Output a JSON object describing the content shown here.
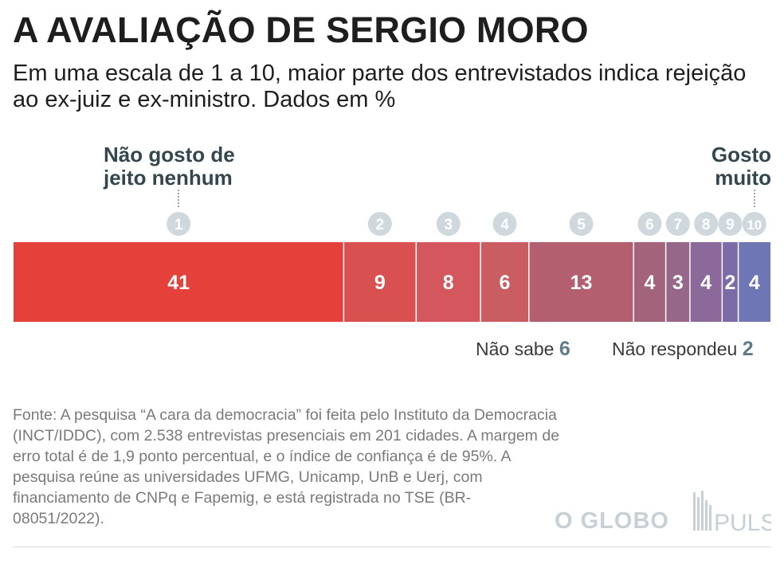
{
  "title": "A AVALIAÇÃO DE SERGIO MORO",
  "subtitle": "Em uma escala de 1 a 10, maior parte dos entrevistados indica rejeição ao ex-juiz e ex-ministro. Dados em %",
  "labels": {
    "low_line1": "Não gosto de",
    "low_line2": "jeito nenhum",
    "high_line1": "Gosto",
    "high_line2": "muito"
  },
  "chart_data": {
    "type": "bar",
    "orientation": "horizontal-stacked",
    "categories": [
      "1",
      "2",
      "3",
      "4",
      "5",
      "6",
      "7",
      "8",
      "9",
      "10"
    ],
    "values": [
      41,
      9,
      8,
      6,
      13,
      4,
      3,
      4,
      2,
      4
    ],
    "extra": [
      {
        "label": "Não sabe",
        "value": 6
      },
      {
        "label": "Não respondeu",
        "value": 2
      }
    ],
    "colors": [
      "#e5413b",
      "#d95050",
      "#d3575c",
      "#ca5d62",
      "#b35f6f",
      "#a3647b",
      "#97678a",
      "#8b699a",
      "#7b6ba6",
      "#6f76b6"
    ],
    "divider_color": "#ffffff",
    "marker_color": "#cfd8dc"
  },
  "missing": {
    "ns_label": "Não sabe",
    "ns_value": "6",
    "nr_label": "Não respondeu",
    "nr_value": "2"
  },
  "source": "Fonte: A pesquisa “A cara da democracia” foi feita pelo Instituto da Democracia (INCT/IDDC), com 2.538 entrevistas presenciais em 201 cidades. A margem de erro total é de 1,9 ponto percentual, e o índice de confiança é de 95%. A pesquisa reúne as universidades UFMG, Unicamp, UnB e Uerj, com financiamento de CNPq e Fapemig, e está registrada no TSE (BR-08051/2022).",
  "logos": {
    "globo": "O GLOBO",
    "pulso": "PULSO"
  }
}
